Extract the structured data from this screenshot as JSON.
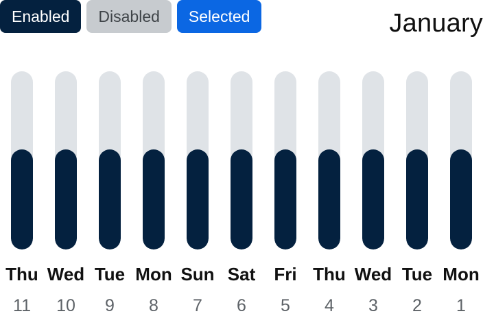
{
  "filters": {
    "enabled_label": "Enabled",
    "disabled_label": "Disabled",
    "selected_label": "Selected"
  },
  "header": {
    "month": "January"
  },
  "days": [
    {
      "weekday": "Thu",
      "date": "11",
      "level": 0.56
    },
    {
      "weekday": "Wed",
      "date": "10",
      "level": 0.56
    },
    {
      "weekday": "Tue",
      "date": "9",
      "level": 0.56
    },
    {
      "weekday": "Mon",
      "date": "8",
      "level": 0.56
    },
    {
      "weekday": "Sun",
      "date": "7",
      "level": 0.56
    },
    {
      "weekday": "Sat",
      "date": "6",
      "level": 0.56
    },
    {
      "weekday": "Fri",
      "date": "5",
      "level": 0.56
    },
    {
      "weekday": "Thu",
      "date": "4",
      "level": 0.56
    },
    {
      "weekday": "Wed",
      "date": "3",
      "level": 0.56
    },
    {
      "weekday": "Tue",
      "date": "2",
      "level": 0.56
    },
    {
      "weekday": "Mon",
      "date": "1",
      "level": 0.56
    }
  ],
  "colors": {
    "enabled": "#04213f",
    "disabled": "#c7cbcf",
    "selected": "#0b67e3",
    "track": "#dfe3e7",
    "fill": "#04213f"
  }
}
